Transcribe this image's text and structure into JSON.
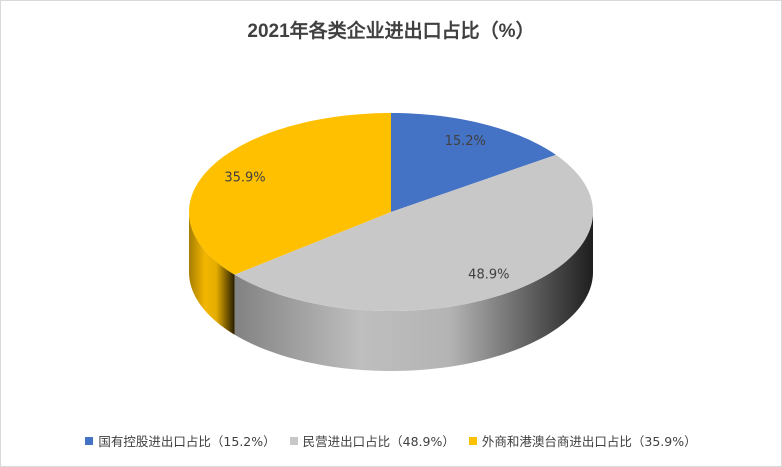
{
  "chart_data": {
    "type": "pie",
    "title": "2021年各类企业进出口占比（%）",
    "categories": [
      "国有控股进出口占比（15.2%）",
      "民营进出口占比（48.9%）",
      "外商和港澳台商进出口占比（35.9%）"
    ],
    "values": [
      15.2,
      48.9,
      35.9
    ],
    "value_labels": [
      "15.2%",
      "48.9%",
      "35.9%"
    ],
    "colors": [
      "#4472c4",
      "#c8c8c8",
      "#ffc000"
    ],
    "legend": "bottom"
  }
}
